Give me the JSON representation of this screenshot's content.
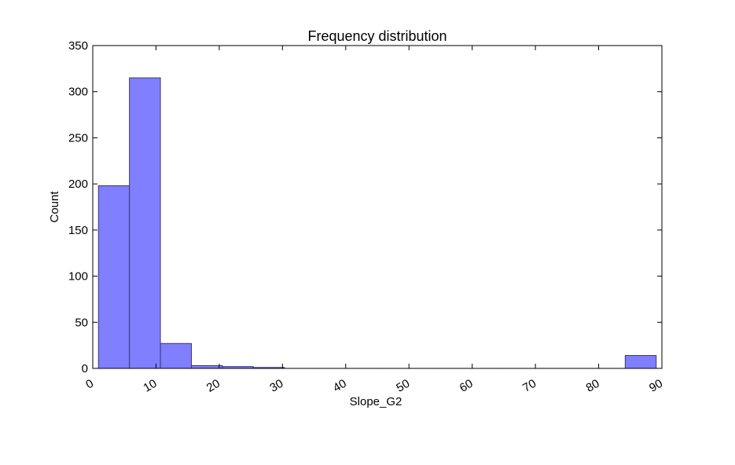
{
  "chart_data": {
    "type": "bar",
    "title": "Frequency distribution",
    "xlabel": "Slope_G2",
    "ylabel": "Count",
    "xlim": [
      0,
      90
    ],
    "ylim": [
      0,
      350
    ],
    "x_ticks": [
      "0",
      "10",
      "20",
      "30",
      "40",
      "50",
      "60",
      "70",
      "80",
      "90"
    ],
    "y_ticks": [
      "0",
      "50",
      "100",
      "150",
      "200",
      "250",
      "300",
      "350"
    ],
    "bins": [
      {
        "start": 0.9,
        "end": 5.8,
        "count": 198
      },
      {
        "start": 5.8,
        "end": 10.7,
        "count": 315
      },
      {
        "start": 10.7,
        "end": 15.6,
        "count": 27
      },
      {
        "start": 15.6,
        "end": 20.5,
        "count": 3
      },
      {
        "start": 20.5,
        "end": 25.4,
        "count": 2
      },
      {
        "start": 25.4,
        "end": 30.3,
        "count": 1
      },
      {
        "start": 30.3,
        "end": 35.2,
        "count": 0
      },
      {
        "start": 35.2,
        "end": 40.1,
        "count": 0
      },
      {
        "start": 40.1,
        "end": 45.0,
        "count": 0
      },
      {
        "start": 45.0,
        "end": 49.9,
        "count": 0
      },
      {
        "start": 49.9,
        "end": 54.8,
        "count": 0
      },
      {
        "start": 54.8,
        "end": 59.7,
        "count": 0
      },
      {
        "start": 59.7,
        "end": 64.6,
        "count": 0
      },
      {
        "start": 64.6,
        "end": 69.5,
        "count": 0
      },
      {
        "start": 69.5,
        "end": 74.4,
        "count": 0
      },
      {
        "start": 74.4,
        "end": 79.3,
        "count": 0
      },
      {
        "start": 79.3,
        "end": 84.2,
        "count": 0
      },
      {
        "start": 84.2,
        "end": 89.1,
        "count": 14
      }
    ],
    "bar_color": "#7f7fff",
    "bar_edge_color": "#3a3a6a",
    "grid": false,
    "legend": "none"
  }
}
